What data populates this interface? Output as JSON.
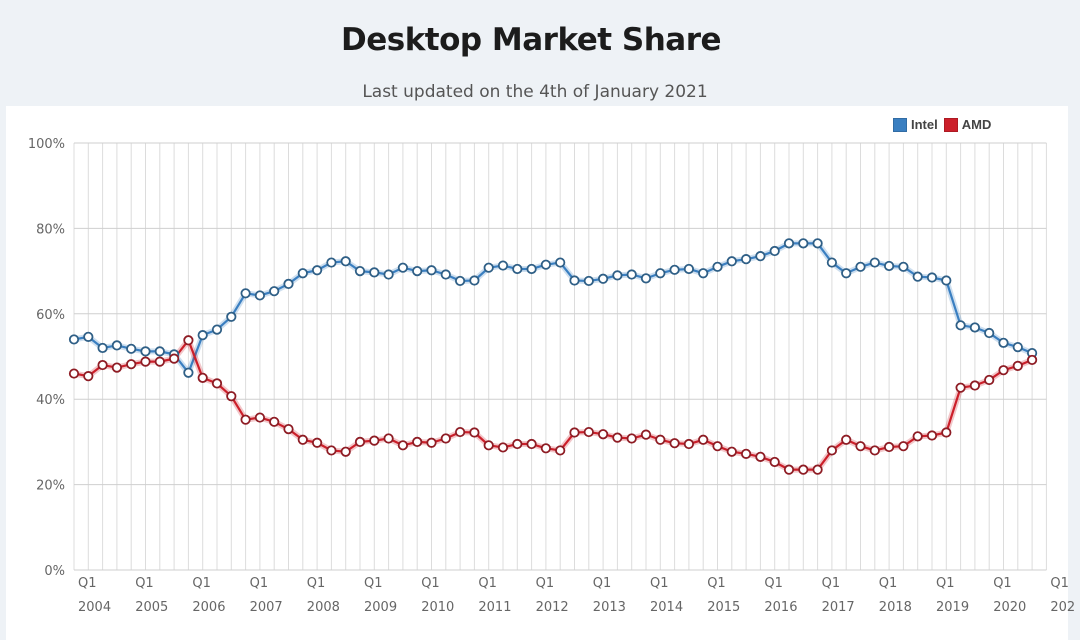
{
  "header": {
    "title": "Desktop Market Share",
    "subtitle": "Last updated on the 4th of January 2021"
  },
  "legend": [
    {
      "label": "Intel",
      "color": "#3a7fc1"
    },
    {
      "label": "AMD",
      "color": "#cc1f2a"
    }
  ],
  "chart_data": {
    "type": "line",
    "title": "Desktop Market Share",
    "subtitle": "Last updated on the 4th of January 2021",
    "xlabel": "",
    "ylabel": "",
    "ylim": [
      0,
      100
    ],
    "y_ticks": [
      "0%",
      "20%",
      "40%",
      "60%",
      "80%",
      "100%"
    ],
    "y_tick_values": [
      0,
      20,
      40,
      60,
      80,
      100
    ],
    "grid": true,
    "legend_position": "top-right",
    "x_tick_labels": [
      {
        "q": "Q1",
        "year": "2004",
        "index": 0
      },
      {
        "q": "Q1",
        "year": "2005",
        "index": 4
      },
      {
        "q": "Q1",
        "year": "2006",
        "index": 8
      },
      {
        "q": "Q1",
        "year": "2007",
        "index": 12
      },
      {
        "q": "Q1",
        "year": "2008",
        "index": 16
      },
      {
        "q": "Q1",
        "year": "2009",
        "index": 20
      },
      {
        "q": "Q1",
        "year": "2010",
        "index": 24
      },
      {
        "q": "Q1",
        "year": "2011",
        "index": 28
      },
      {
        "q": "Q1",
        "year": "2012",
        "index": 32
      },
      {
        "q": "Q1",
        "year": "2013",
        "index": 36
      },
      {
        "q": "Q1",
        "year": "2014",
        "index": 40
      },
      {
        "q": "Q1",
        "year": "2015",
        "index": 44
      },
      {
        "q": "Q1",
        "year": "2016",
        "index": 48
      },
      {
        "q": "Q1",
        "year": "2017",
        "index": 52
      },
      {
        "q": "Q1",
        "year": "2018",
        "index": 56
      },
      {
        "q": "Q1",
        "year": "2019",
        "index": 60
      },
      {
        "q": "Q1",
        "year": "2020",
        "index": 64
      },
      {
        "q": "Q1",
        "year": "202",
        "index": 68
      }
    ],
    "x": [
      "2004 Q1",
      "2004 Q2",
      "2004 Q3",
      "2004 Q4",
      "2005 Q1",
      "2005 Q2",
      "2005 Q3",
      "2005 Q4",
      "2006 Q1",
      "2006 Q2",
      "2006 Q3",
      "2006 Q4",
      "2007 Q1",
      "2007 Q2",
      "2007 Q3",
      "2007 Q4",
      "2008 Q1",
      "2008 Q2",
      "2008 Q3",
      "2008 Q4",
      "2009 Q1",
      "2009 Q2",
      "2009 Q3",
      "2009 Q4",
      "2010 Q1",
      "2010 Q2",
      "2010 Q3",
      "2010 Q4",
      "2011 Q1",
      "2011 Q2",
      "2011 Q3",
      "2011 Q4",
      "2012 Q1",
      "2012 Q2",
      "2012 Q3",
      "2012 Q4",
      "2013 Q1",
      "2013 Q2",
      "2013 Q3",
      "2013 Q4",
      "2014 Q1",
      "2014 Q2",
      "2014 Q3",
      "2014 Q4",
      "2015 Q1",
      "2015 Q2",
      "2015 Q3",
      "2015 Q4",
      "2016 Q1",
      "2016 Q2",
      "2016 Q3",
      "2016 Q4",
      "2017 Q1",
      "2017 Q2",
      "2017 Q3",
      "2017 Q4",
      "2018 Q1",
      "2018 Q2",
      "2018 Q3",
      "2018 Q4",
      "2019 Q1",
      "2019 Q2",
      "2019 Q3",
      "2019 Q4",
      "2020 Q1",
      "2020 Q2",
      "2020 Q3",
      "2020 Q4"
    ],
    "series": [
      {
        "name": "Intel",
        "color": "#3a7fc1",
        "values": [
          54.0,
          54.6,
          52.0,
          52.6,
          51.8,
          51.2,
          51.2,
          50.5,
          46.2,
          55.0,
          56.3,
          59.3,
          64.8,
          64.3,
          65.3,
          67.0,
          69.5,
          70.2,
          72.0,
          72.3,
          70.0,
          69.7,
          69.2,
          70.8,
          70.0,
          70.2,
          69.2,
          67.7,
          67.8,
          70.8,
          71.3,
          70.5,
          70.5,
          71.5,
          72.0,
          67.8,
          67.7,
          68.2,
          69.0,
          69.2,
          68.3,
          69.5,
          70.3,
          70.5,
          69.5,
          71.0,
          72.3,
          72.8,
          73.5,
          74.7,
          76.5,
          76.5,
          76.5,
          72.0,
          69.5,
          71.0,
          72.0,
          71.2,
          71.0,
          68.7,
          68.5,
          67.8,
          57.3,
          56.8,
          55.5,
          53.2,
          52.2,
          50.8
        ]
      },
      {
        "name": "AMD",
        "color": "#cc1f2a",
        "values": [
          46.0,
          45.4,
          48.0,
          47.4,
          48.2,
          48.8,
          48.8,
          49.5,
          53.8,
          45.0,
          43.7,
          40.7,
          35.2,
          35.7,
          34.7,
          33.0,
          30.5,
          29.8,
          28.0,
          27.7,
          30.0,
          30.3,
          30.8,
          29.2,
          30.0,
          29.8,
          30.8,
          32.3,
          32.2,
          29.2,
          28.7,
          29.5,
          29.5,
          28.5,
          28.0,
          32.2,
          32.3,
          31.8,
          31.0,
          30.8,
          31.7,
          30.5,
          29.7,
          29.5,
          30.5,
          29.0,
          27.7,
          27.2,
          26.5,
          25.3,
          23.5,
          23.5,
          23.5,
          28.0,
          30.5,
          29.0,
          28.0,
          28.8,
          29.0,
          31.3,
          31.5,
          32.2,
          42.7,
          43.2,
          44.5,
          46.8,
          47.8,
          49.2
        ]
      }
    ]
  }
}
